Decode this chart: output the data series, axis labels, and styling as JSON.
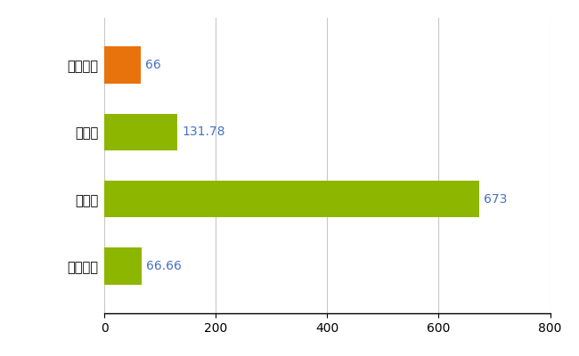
{
  "categories": [
    "藤井寺市",
    "県平均",
    "県最大",
    "全国平均"
  ],
  "values": [
    66,
    131.78,
    673,
    66.66
  ],
  "bar_colors": [
    "#E8720C",
    "#8DB600",
    "#8DB600",
    "#8DB600"
  ],
  "value_labels": [
    "66",
    "131.78",
    "673",
    "66.66"
  ],
  "value_label_color": "#4472C4",
  "xlim": [
    0,
    800
  ],
  "xticks": [
    0,
    200,
    400,
    600,
    800
  ],
  "grid_color": "#C8C8C8",
  "background_color": "#FFFFFF",
  "bar_height": 0.55,
  "figsize": [
    6.5,
    4.0
  ],
  "dpi": 100,
  "label_fontsize": 10.5,
  "tick_fontsize": 10,
  "value_fontsize": 10
}
